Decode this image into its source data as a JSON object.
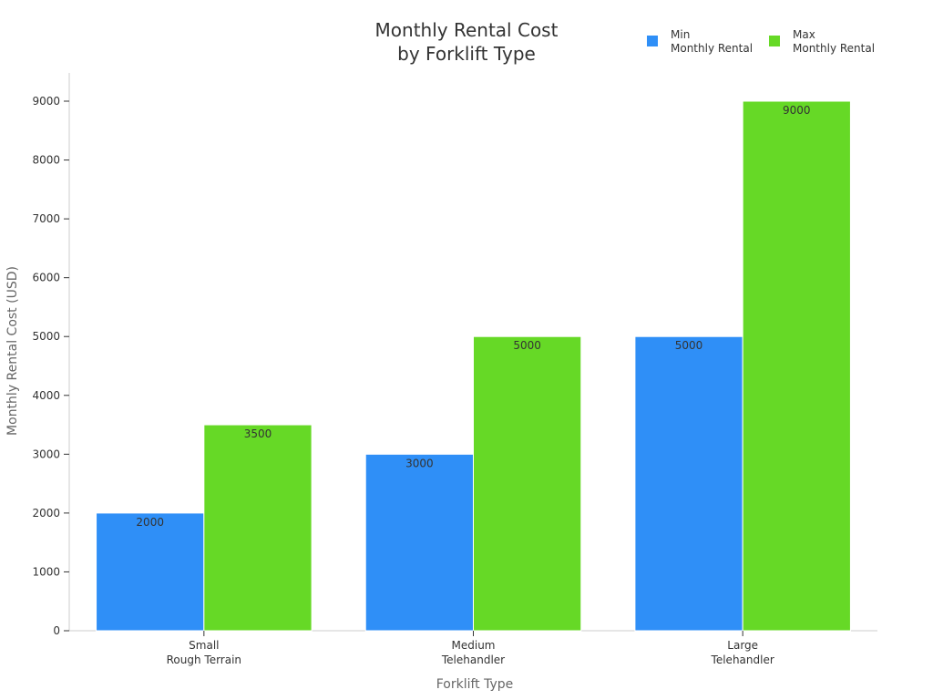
{
  "chart_data": {
    "type": "bar",
    "title": [
      "Monthly Rental Cost",
      "by Forklift Type"
    ],
    "xlabel": "Forklift Type",
    "ylabel": "Monthly Rental Cost (USD)",
    "ylim": [
      0,
      9000
    ],
    "yticks": [
      0,
      1000,
      2000,
      3000,
      4000,
      5000,
      6000,
      7000,
      8000,
      9000
    ],
    "grid": false,
    "legend_position": "top-right",
    "categories": [
      [
        "Small",
        "Rough Terrain"
      ],
      [
        "Medium",
        "Telehandler"
      ],
      [
        "Large",
        "Telehandler"
      ]
    ],
    "series": [
      {
        "name": [
          "Min",
          "Monthly Rental"
        ],
        "color": "#2f8ff7",
        "values": [
          2000,
          3000,
          5000
        ],
        "labels": [
          "2000",
          "3000",
          "5000"
        ]
      },
      {
        "name": [
          "Max",
          "Monthly Rental"
        ],
        "color": "#66d926",
        "values": [
          3500,
          5000,
          9000
        ],
        "labels": [
          "3500",
          "5000",
          "9000"
        ]
      }
    ]
  }
}
